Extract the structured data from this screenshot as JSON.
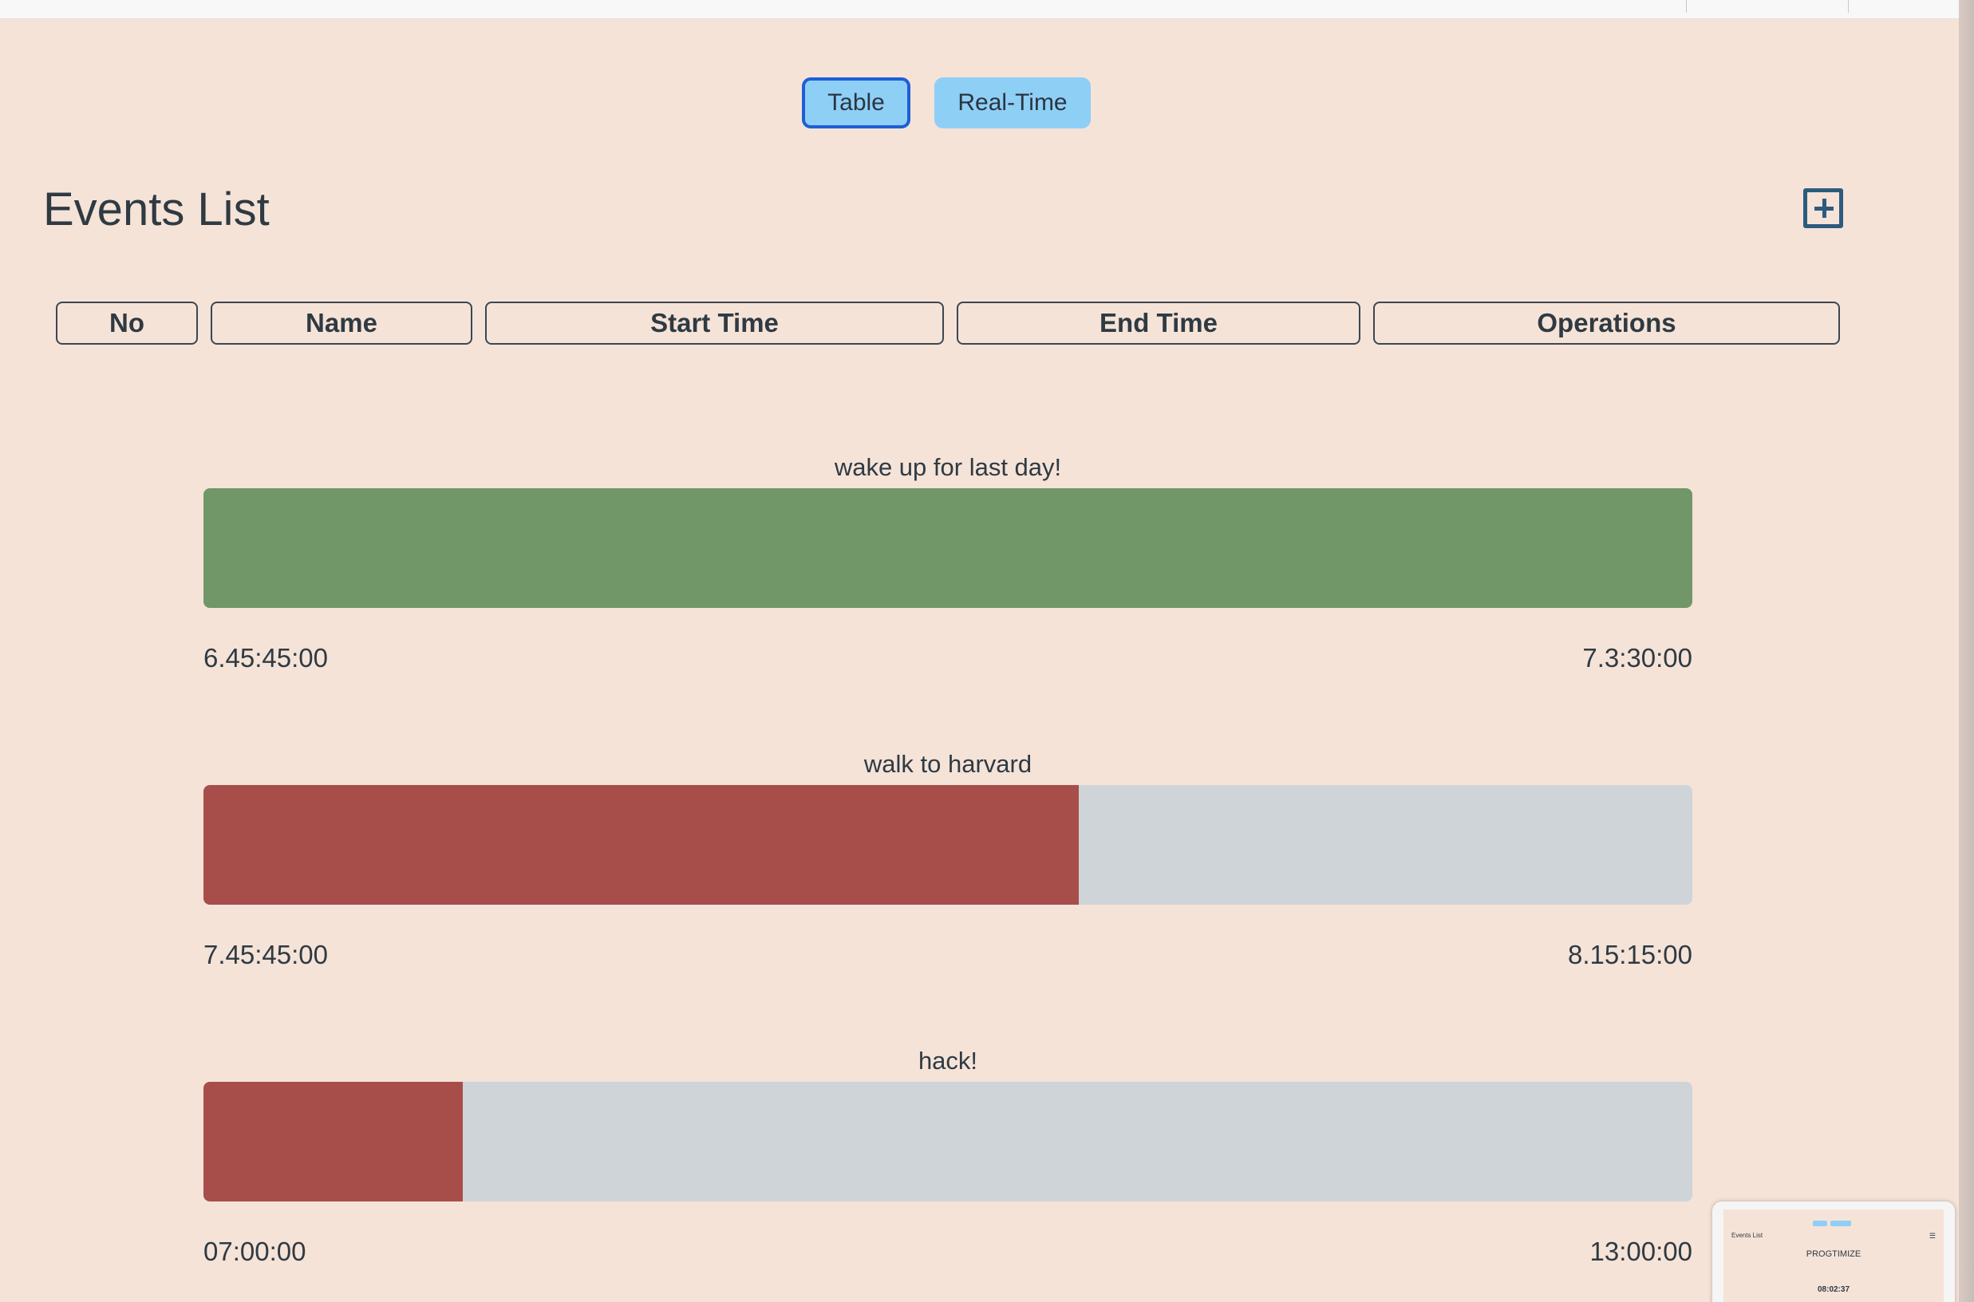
{
  "view_toggle": {
    "table_label": "Table",
    "realtime_label": "Real-Time"
  },
  "page_title": "Events List",
  "table_headers": [
    "No",
    "Name",
    "Start Time",
    "End Time",
    "Operations"
  ],
  "colors": {
    "background": "#f5e3d8",
    "toggle_button": "#8ecff6",
    "toggle_active_border": "#1e5fd6",
    "complete": "#719768",
    "in_progress": "#a84e4a",
    "track": "#cfd4d8"
  },
  "events": [
    {
      "name": "wake up for last day!",
      "start": "6.45:45:00",
      "end": "7.3:30:00",
      "progress": 1.0,
      "status": "complete"
    },
    {
      "name": "walk to harvard",
      "start": "7.45:45:00",
      "end": "8.15:15:00",
      "progress": 0.588,
      "status": "in_progress"
    },
    {
      "name": "hack!",
      "start": "07:00:00",
      "end": "13:00:00",
      "progress": 0.174,
      "status": "in_progress"
    }
  ],
  "pip_preview": {
    "title": "Events List",
    "brand": "PROGTIMIZE",
    "clock": "08:02:37",
    "menu_icon": "hamburger-icon"
  }
}
